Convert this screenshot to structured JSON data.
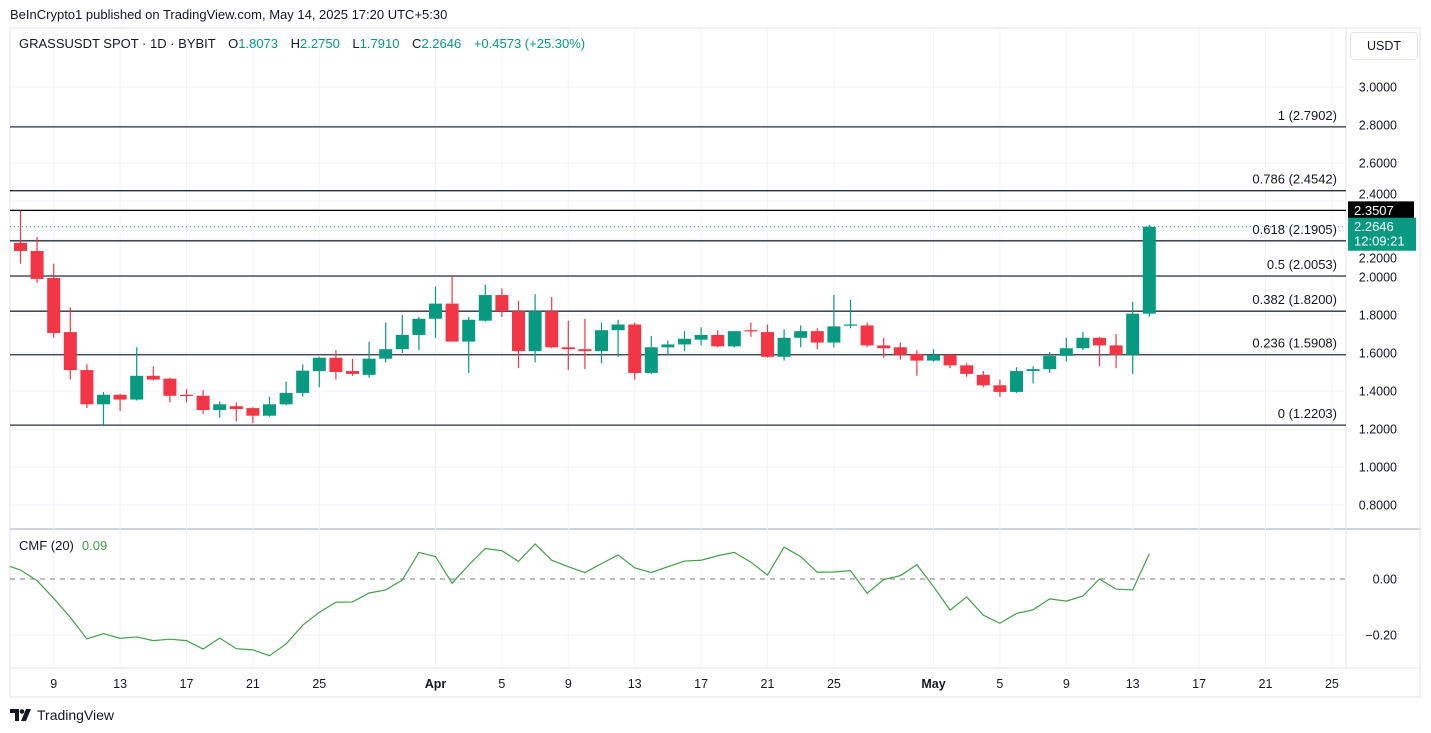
{
  "header": {
    "published": "BeInCrypto1 published on TradingView.com, May 14, 2025 17:20 UTC+5:30",
    "symbol": "GRASSUSDT SPOT · 1D · BYBIT",
    "o_label": "O",
    "o": "1.8073",
    "h_label": "H",
    "h": "2.2750",
    "l_label": "L",
    "l": "1.7910",
    "c_label": "C",
    "c": "2.2646",
    "change": "+0.4573 (+25.30%)"
  },
  "currency": "USDT",
  "brand": "TradingView",
  "colors": {
    "up": "#089981",
    "down": "#f23645",
    "cmf": "#43a047",
    "fib": "#2a2e39"
  },
  "chart_data": [
    {
      "type": "candlestick",
      "title": "GRASSUSDT SPOT · 1D · BYBIT",
      "x_start": "2025-03-07",
      "x_tick_labels": [
        "9",
        "13",
        "17",
        "21",
        "25",
        "Apr",
        "5",
        "9",
        "13",
        "17",
        "21",
        "25",
        "May",
        "5",
        "9",
        "13",
        "17",
        "21",
        "25"
      ],
      "y_ticks": [
        "3.0000",
        "2.8000",
        "2.6000",
        "2.4000",
        "2.2000",
        "2.0000",
        "1.8000",
        "1.6000",
        "1.4000",
        "1.2000",
        "1.0000",
        "0.8000"
      ],
      "ylim": [
        0.7,
        3.3
      ],
      "grid": true,
      "ohlc": [
        [
          2.18,
          2.35,
          2.07,
          2.137
        ],
        [
          2.137,
          2.21,
          1.97,
          1.99
        ],
        [
          1.995,
          2.07,
          1.68,
          1.705
        ],
        [
          1.71,
          1.84,
          1.46,
          1.51
        ],
        [
          1.51,
          1.54,
          1.31,
          1.33
        ],
        [
          1.33,
          1.395,
          1.215,
          1.38
        ],
        [
          1.38,
          1.385,
          1.295,
          1.355
        ],
        [
          1.355,
          1.63,
          1.35,
          1.48
        ],
        [
          1.48,
          1.53,
          1.455,
          1.46
        ],
        [
          1.465,
          1.47,
          1.34,
          1.375
        ],
        [
          1.38,
          1.41,
          1.34,
          1.375
        ],
        [
          1.375,
          1.405,
          1.28,
          1.3
        ],
        [
          1.3,
          1.345,
          1.26,
          1.33
        ],
        [
          1.32,
          1.34,
          1.24,
          1.305
        ],
        [
          1.31,
          1.315,
          1.23,
          1.27
        ],
        [
          1.27,
          1.37,
          1.265,
          1.33
        ],
        [
          1.33,
          1.45,
          1.325,
          1.39
        ],
        [
          1.39,
          1.54,
          1.37,
          1.507
        ],
        [
          1.505,
          1.58,
          1.42,
          1.575
        ],
        [
          1.575,
          1.615,
          1.46,
          1.5
        ],
        [
          1.505,
          1.57,
          1.48,
          1.49
        ],
        [
          1.485,
          1.66,
          1.47,
          1.57
        ],
        [
          1.57,
          1.76,
          1.55,
          1.62
        ],
        [
          1.62,
          1.8,
          1.6,
          1.695
        ],
        [
          1.695,
          1.79,
          1.615,
          1.78
        ],
        [
          1.78,
          1.95,
          1.68,
          1.86
        ],
        [
          1.86,
          2.0,
          1.66,
          1.66
        ],
        [
          1.66,
          1.79,
          1.495,
          1.775
        ],
        [
          1.77,
          1.96,
          1.765,
          1.905
        ],
        [
          1.905,
          1.94,
          1.79,
          1.82
        ],
        [
          1.82,
          1.875,
          1.52,
          1.61
        ],
        [
          1.61,
          1.91,
          1.55,
          1.82
        ],
        [
          1.82,
          1.895,
          1.625,
          1.63
        ],
        [
          1.63,
          1.77,
          1.51,
          1.62
        ],
        [
          1.62,
          1.78,
          1.515,
          1.61
        ],
        [
          1.61,
          1.76,
          1.545,
          1.72
        ],
        [
          1.72,
          1.775,
          1.58,
          1.75
        ],
        [
          1.75,
          1.76,
          1.46,
          1.495
        ],
        [
          1.495,
          1.69,
          1.49,
          1.63
        ],
        [
          1.63,
          1.665,
          1.59,
          1.645
        ],
        [
          1.645,
          1.715,
          1.61,
          1.675
        ],
        [
          1.67,
          1.735,
          1.64,
          1.695
        ],
        [
          1.695,
          1.72,
          1.63,
          1.635
        ],
        [
          1.635,
          1.715,
          1.63,
          1.715
        ],
        [
          1.72,
          1.76,
          1.685,
          1.715
        ],
        [
          1.71,
          1.75,
          1.575,
          1.58
        ],
        [
          1.58,
          1.725,
          1.56,
          1.68
        ],
        [
          1.68,
          1.745,
          1.63,
          1.715
        ],
        [
          1.715,
          1.73,
          1.62,
          1.655
        ],
        [
          1.655,
          1.905,
          1.63,
          1.74
        ],
        [
          1.745,
          1.88,
          1.73,
          1.75
        ],
        [
          1.745,
          1.76,
          1.63,
          1.64
        ],
        [
          1.64,
          1.68,
          1.575,
          1.625
        ],
        [
          1.63,
          1.655,
          1.565,
          1.59
        ],
        [
          1.595,
          1.615,
          1.48,
          1.56
        ],
        [
          1.56,
          1.62,
          1.555,
          1.59
        ],
        [
          1.59,
          1.595,
          1.52,
          1.535
        ],
        [
          1.535,
          1.545,
          1.475,
          1.49
        ],
        [
          1.485,
          1.505,
          1.42,
          1.43
        ],
        [
          1.43,
          1.46,
          1.37,
          1.395
        ],
        [
          1.395,
          1.525,
          1.39,
          1.505
        ],
        [
          1.505,
          1.53,
          1.44,
          1.515
        ],
        [
          1.515,
          1.605,
          1.495,
          1.585
        ],
        [
          1.585,
          1.68,
          1.555,
          1.625
        ],
        [
          1.625,
          1.71,
          1.615,
          1.68
        ],
        [
          1.68,
          1.685,
          1.53,
          1.64
        ],
        [
          1.64,
          1.7,
          1.52,
          1.59
        ],
        [
          1.59,
          1.87,
          1.49,
          1.807
        ],
        [
          1.8073,
          2.275,
          1.791,
          2.2646
        ]
      ],
      "fib_levels": [
        {
          "label": "1 (2.7902)",
          "value": 2.7902
        },
        {
          "label": "0.786 (2.4542)",
          "value": 2.4542
        },
        {
          "label": "0.618 (2.1905)",
          "value": 2.1905
        },
        {
          "label": "0.5 (2.0053)",
          "value": 2.0053
        },
        {
          "label": "0.382 (1.8200)",
          "value": 1.82
        },
        {
          "label": "0.236 (1.5908)",
          "value": 1.5908
        },
        {
          "label": "0 (1.2203)",
          "value": 1.2203
        }
      ],
      "horizontal_line": {
        "value": 2.3507,
        "label": "2.3507"
      },
      "last_price": {
        "value": 2.2646,
        "label": "2.2646",
        "countdown": "12:09:21"
      }
    },
    {
      "type": "line",
      "title": "CMF (20)",
      "current_value": "0.09",
      "y_ticks": [
        "0.00",
        "−0.20"
      ],
      "zero_line": "dashed",
      "values": [
        0.032,
        -0.006,
        -0.069,
        -0.137,
        -0.214,
        -0.195,
        -0.212,
        -0.207,
        -0.22,
        -0.215,
        -0.22,
        -0.25,
        -0.211,
        -0.249,
        -0.253,
        -0.274,
        -0.232,
        -0.165,
        -0.119,
        -0.083,
        -0.082,
        -0.05,
        -0.039,
        -0.004,
        0.095,
        0.08,
        -0.015,
        0.05,
        0.109,
        0.101,
        0.063,
        0.125,
        0.067,
        0.044,
        0.023,
        0.055,
        0.086,
        0.04,
        0.023,
        0.044,
        0.064,
        0.067,
        0.083,
        0.095,
        0.06,
        0.014,
        0.114,
        0.08,
        0.024,
        0.025,
        0.03,
        -0.051,
        -0.002,
        0.012,
        0.051,
        -0.027,
        -0.111,
        -0.064,
        -0.129,
        -0.158,
        -0.123,
        -0.11,
        -0.071,
        -0.079,
        -0.061,
        0.0,
        -0.036,
        -0.039,
        0.09
      ]
    }
  ]
}
